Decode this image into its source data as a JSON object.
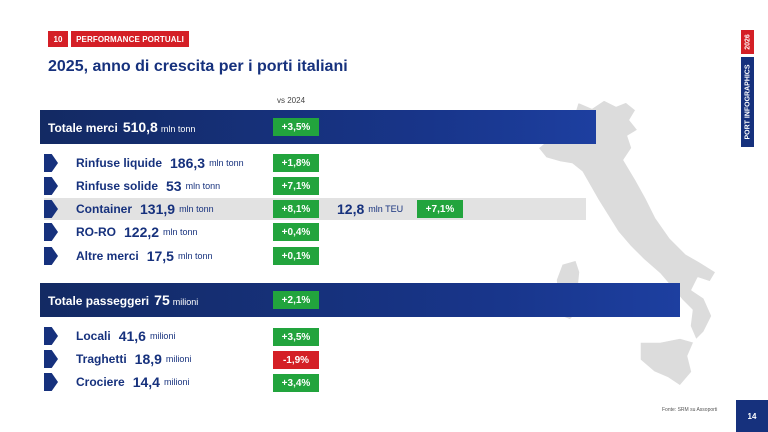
{
  "header": {
    "section_number": "10",
    "section_label": "PERFORMANCE PORTUALI",
    "title": "2025, anno di crescita per i porti italiani"
  },
  "sidebar": {
    "year": "2026",
    "label": "PORT INFOGRAPHICS"
  },
  "comparison_label": "vs 2024",
  "merci": {
    "title": "Totale merci",
    "value": "510,8",
    "unit": "mln tonn",
    "change": "+3,5%",
    "rows": [
      {
        "name": "Rinfuse liquide",
        "value": "186,3",
        "unit": "mln tonn",
        "change": "+1,8%",
        "trend": "up"
      },
      {
        "name": "Rinfuse solide",
        "value": "53",
        "unit": "mln tonn",
        "change": "+7,1%",
        "trend": "up"
      },
      {
        "name": "Container",
        "value": "131,9",
        "unit": "mln tonn",
        "change": "+8,1%",
        "trend": "up"
      },
      {
        "name": "RO-RO",
        "value": "122,2",
        "unit": "mln tonn",
        "change": "+0,4%",
        "trend": "up"
      },
      {
        "name": "Altre merci",
        "value": "17,5",
        "unit": "mln tonn",
        "change": "+0,1%",
        "trend": "up"
      }
    ],
    "container_teu": {
      "value": "12,8",
      "unit": "mln TEU",
      "change": "+7,1%"
    }
  },
  "passeggeri": {
    "title": "Totale passeggeri",
    "value": "75",
    "unit": "milioni",
    "change": "+2,1%",
    "rows": [
      {
        "name": "Locali",
        "value": "41,6",
        "unit": "milioni",
        "change": "+3,5%",
        "trend": "up"
      },
      {
        "name": "Traghetti",
        "value": "18,9",
        "unit": "milioni",
        "change": "-1,9%",
        "trend": "down"
      },
      {
        "name": "Crociere",
        "value": "14,4",
        "unit": "milioni",
        "change": "+3,4%",
        "trend": "up"
      }
    ]
  },
  "footer": {
    "source": "Fonte: SRM su Assoporti",
    "page_number": "14"
  },
  "colors": {
    "navy": "#16317d",
    "red": "#d41f26",
    "green": "#22a43d",
    "map_grey": "#dcdcdc"
  },
  "icons": {
    "row_marker": "arrow-marker-icon",
    "map": "italy-map-icon"
  }
}
